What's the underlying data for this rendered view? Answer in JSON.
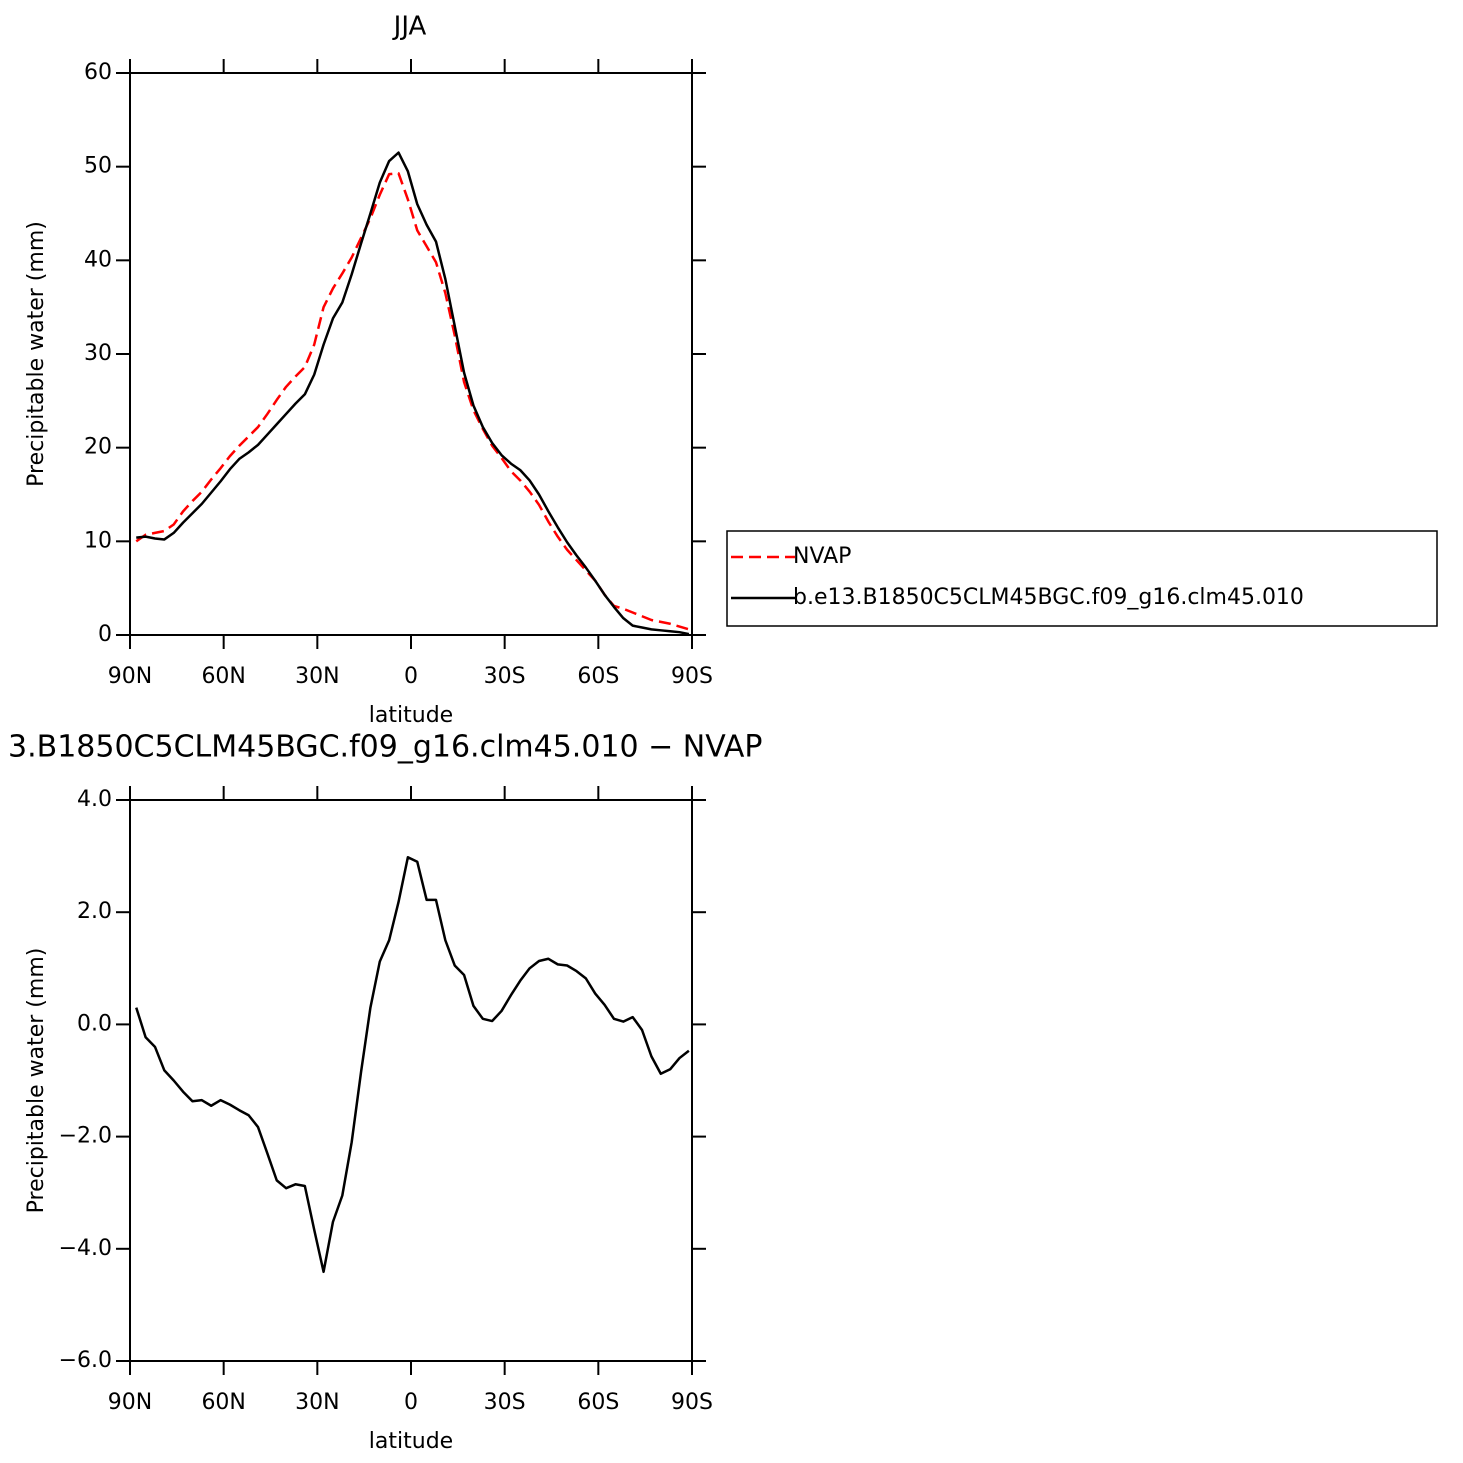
{
  "chart_data": [
    {
      "type": "line",
      "title": "JJA",
      "xlabel": "latitude",
      "ylabel": "Precipitable water (mm)",
      "x": [
        88,
        85,
        82,
        79,
        76,
        73,
        70,
        67,
        64,
        61,
        58,
        55,
        52,
        49,
        46,
        43,
        40,
        37,
        34,
        31,
        28,
        25,
        22,
        19,
        16,
        13,
        10,
        7,
        4,
        1,
        -2,
        -5,
        -8,
        -11,
        -14,
        -17,
        -20,
        -23,
        -26,
        -29,
        -32,
        -35,
        -38,
        -41,
        -44,
        -47,
        -50,
        -53,
        -56,
        -59,
        -62,
        -65,
        -68,
        -71,
        -74,
        -77,
        -80,
        -83,
        -86,
        -89
      ],
      "series": [
        {
          "name": "NVAP",
          "color": "#ff0000",
          "dashed": true,
          "values": [
            10.0,
            10.7,
            10.9,
            11.1,
            11.8,
            13.2,
            14.3,
            15.3,
            16.6,
            17.8,
            19.1,
            20.2,
            21.2,
            22.2,
            23.6,
            25.1,
            26.5,
            27.6,
            28.6,
            31.0,
            35.0,
            37.0,
            38.6,
            40.3,
            42.4,
            44.5,
            47,
            49.2,
            49.3,
            46.5,
            43.2,
            41.5,
            39.8,
            36.5,
            32,
            27,
            24,
            22,
            20.2,
            18.9,
            17.5,
            16.5,
            15.3,
            13.9,
            12.1,
            10.5,
            9.1,
            8,
            6.9,
            5.8,
            4.3,
            3.1,
            2.8,
            2.4,
            2.0,
            1.6,
            1.4,
            1.2,
            0.9,
            0.6
          ]
        },
        {
          "name": "b.e13.B1850C5CLM45BGC.f09_g16.clm45.010",
          "color": "#000000",
          "dashed": false,
          "values": [
            10.4,
            10.5,
            10.3,
            10.2,
            10.9,
            12.0,
            13.0,
            14.0,
            15.2,
            16.4,
            17.7,
            18.8,
            19.5,
            20.3,
            21.4,
            22.5,
            23.6,
            24.7,
            25.7,
            27.8,
            31,
            33.8,
            35.5,
            38.5,
            41.8,
            45.0,
            48.3,
            50.6,
            51.5,
            49.5,
            46,
            43.8,
            42,
            38,
            33,
            28,
            24.5,
            22.2,
            20.5,
            19.2,
            18.3,
            17.6,
            16.5,
            15,
            13.2,
            11.5,
            9.9,
            8.5,
            7.2,
            5.8,
            4.3,
            3.0,
            1.8,
            1.0,
            0.8,
            0.6,
            0.5,
            0.4,
            0.3,
            0.1
          ]
        }
      ],
      "xlim": [
        90,
        -90
      ],
      "xticks": [
        {
          "value": 90,
          "label": "90N"
        },
        {
          "value": 60,
          "label": "60N"
        },
        {
          "value": 30,
          "label": "30N"
        },
        0,
        {
          "value": -30,
          "label": "30S"
        },
        {
          "value": -60,
          "label": "60S"
        },
        {
          "value": -90,
          "label": "90S"
        }
      ],
      "ylim": [
        0,
        60
      ],
      "yticks": [
        0,
        10,
        20,
        30,
        40,
        50,
        60
      ],
      "legend": "right"
    },
    {
      "type": "line",
      "title": "3.B1850C5CLM45BGC.f09_g16.clm45.010 − NVAP",
      "xlabel": "latitude",
      "ylabel": "Precipitable water (mm)",
      "x": [
        88,
        85,
        82,
        79,
        76,
        73,
        70,
        67,
        64,
        61,
        58,
        55,
        52,
        49,
        46,
        43,
        40,
        37,
        34,
        31,
        28,
        25,
        22,
        19,
        16,
        13,
        10,
        7,
        4,
        1,
        -2,
        -5,
        -8,
        -11,
        -14,
        -17,
        -20,
        -23,
        -26,
        -29,
        -32,
        -35,
        -38,
        -41,
        -44,
        -47,
        -50,
        -53,
        -56,
        -59,
        -62,
        -65,
        -68,
        -71,
        -74,
        -77,
        -80,
        -83,
        -86,
        -89
      ],
      "series": [
        {
          "color": "#000000",
          "dashed": false,
          "values": [
            0.3,
            -0.23,
            -0.4,
            -0.82,
            -1.0,
            -1.2,
            -1.37,
            -1.35,
            -1.45,
            -1.35,
            -1.43,
            -1.53,
            -1.62,
            -1.83,
            -2.3,
            -2.78,
            -2.92,
            -2.85,
            -2.88,
            -3.66,
            -4.41,
            -3.52,
            -3.05,
            -2.1,
            -0.85,
            0.3,
            1.12,
            1.5,
            2.18,
            2.98,
            2.9,
            2.22,
            2.22,
            1.5,
            1.05,
            0.88,
            0.33,
            0.1,
            0.06,
            0.24,
            0.52,
            0.78,
            1.0,
            1.13,
            1.17,
            1.07,
            1.05,
            0.95,
            0.82,
            0.55,
            0.35,
            0.1,
            0.05,
            0.13,
            -0.1,
            -0.57,
            -0.88,
            -0.8,
            -0.6,
            -0.47
          ]
        }
      ],
      "xlim": [
        90,
        -90
      ],
      "xticks": [
        {
          "value": 90,
          "label": "90N"
        },
        {
          "value": 60,
          "label": "60N"
        },
        {
          "value": 30,
          "label": "30N"
        },
        0,
        {
          "value": -30,
          "label": "30S"
        },
        {
          "value": -60,
          "label": "60S"
        },
        {
          "value": -90,
          "label": "90S"
        }
      ],
      "ylim": [
        -6,
        4
      ],
      "yticks": [
        {
          "value": -6,
          "label": "−6.0"
        },
        {
          "value": -4,
          "label": "−4.0"
        },
        {
          "value": -2,
          "label": "−2.0"
        },
        {
          "value": 0,
          "label": "0.0"
        },
        {
          "value": 2,
          "label": "2.0"
        },
        {
          "value": 4,
          "label": "4.0"
        }
      ]
    }
  ]
}
